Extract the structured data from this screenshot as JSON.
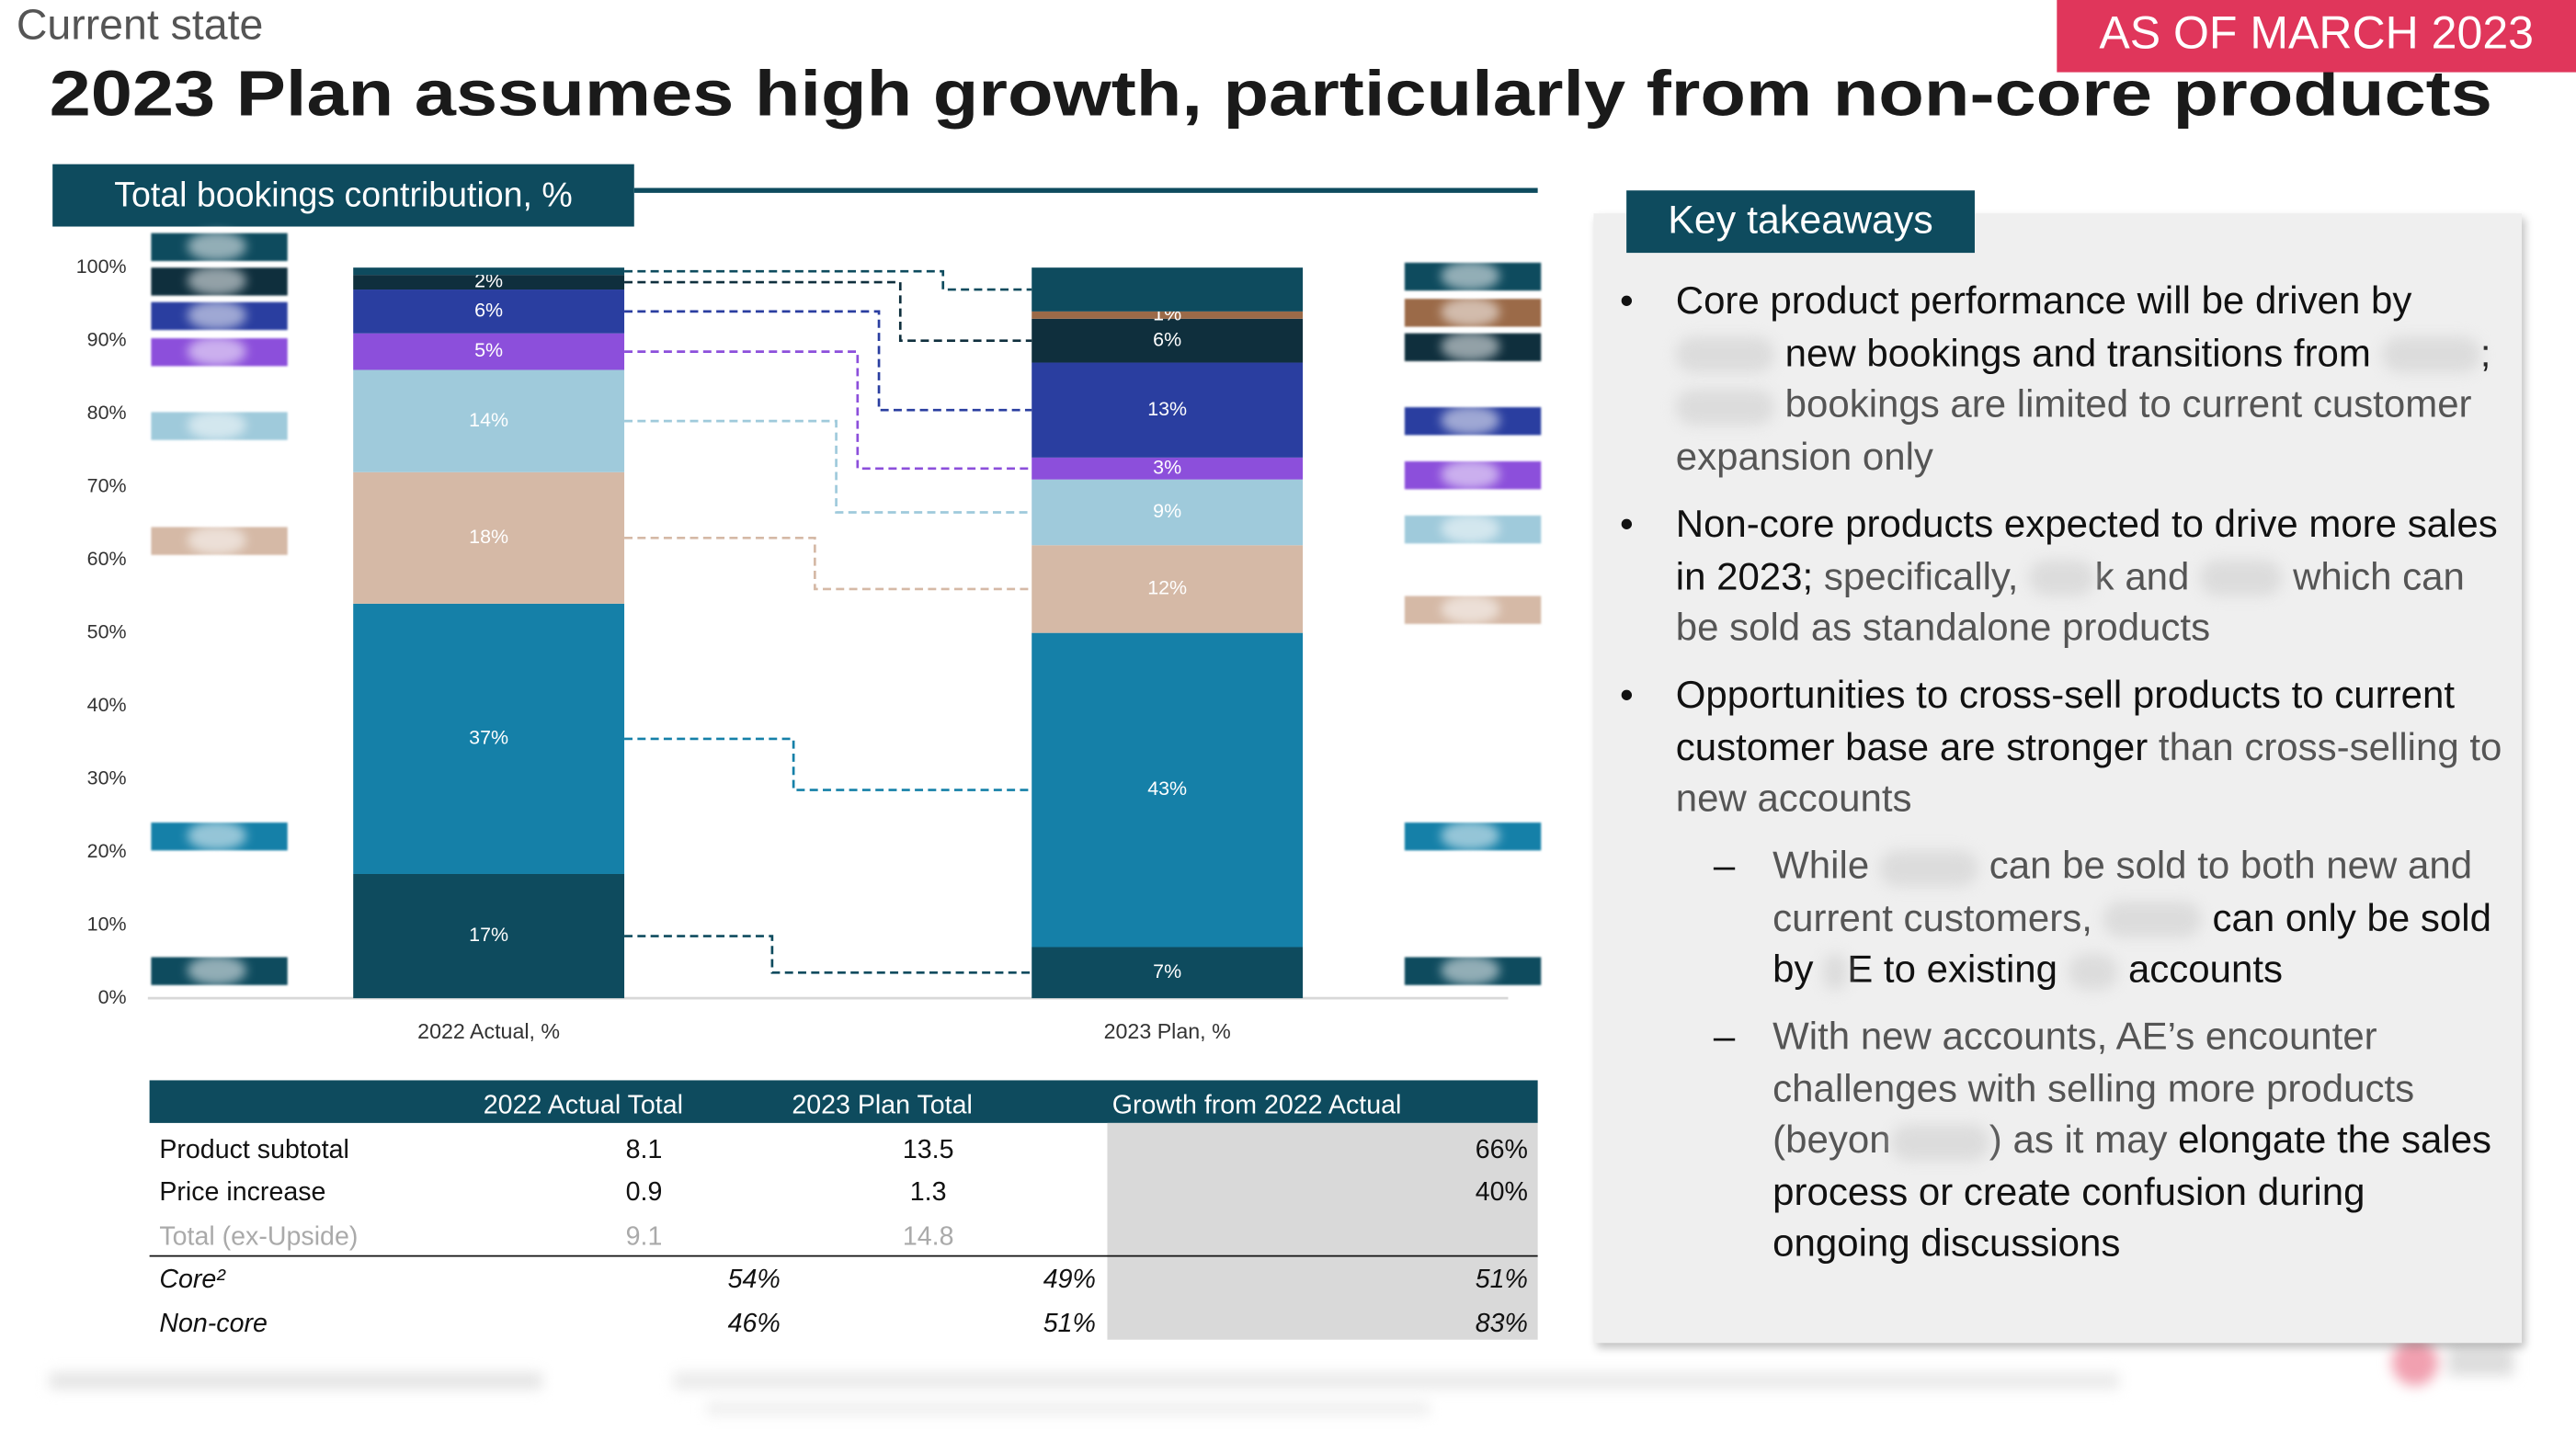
{
  "header": {
    "section": "Current state",
    "title": "2023 Plan assumes high growth, particularly from non-core products",
    "badge": "AS OF MARCH 2023"
  },
  "chart_data": {
    "type": "stacked-bar",
    "title": "Total bookings contribution, %",
    "categories": [
      "2022 Actual, %",
      "2023 Plan, %"
    ],
    "series": [
      {
        "color": "#0e4b5e",
        "values": [
          17,
          7
        ],
        "value_labels": [
          "17%",
          "7%"
        ]
      },
      {
        "color": "#1580a8",
        "values": [
          37,
          43
        ],
        "value_labels": [
          "37%",
          "43%"
        ]
      },
      {
        "color": "#d5b9a6",
        "values": [
          18,
          12
        ],
        "value_labels": [
          "18%",
          "12%"
        ]
      },
      {
        "color": "#9fcadb",
        "values": [
          14,
          9
        ],
        "value_labels": [
          "14%",
          "9%"
        ]
      },
      {
        "color": "#8c4fdb",
        "values": [
          5,
          3
        ],
        "value_labels": [
          "5%",
          "3%"
        ]
      },
      {
        "color": "#2a3ea0",
        "values": [
          6,
          13
        ],
        "value_labels": [
          "6%",
          "13%"
        ]
      },
      {
        "color": "#0f2f3d",
        "values": [
          2,
          6
        ],
        "value_labels": [
          "2%",
          "6%"
        ]
      },
      {
        "color": "#9b6a48",
        "values": [
          null,
          1
        ],
        "value_labels": [
          null,
          "1%"
        ]
      },
      {
        "color": "#0e4b5e",
        "values": [
          1,
          6
        ],
        "value_labels": [
          null,
          null
        ]
      }
    ],
    "ylim": [
      0,
      100
    ],
    "yticks": [
      {
        "value": 0,
        "label": "0%"
      },
      {
        "value": 10,
        "label": "10%"
      },
      {
        "value": 20,
        "label": "20%"
      },
      {
        "value": 30,
        "label": "30%"
      },
      {
        "value": 40,
        "label": "40%"
      },
      {
        "value": 50,
        "label": "50%"
      },
      {
        "value": 60,
        "label": "60%"
      },
      {
        "value": 70,
        "label": "70%"
      },
      {
        "value": 80,
        "label": "80%"
      },
      {
        "value": 90,
        "label": "90%"
      },
      {
        "value": 100,
        "label": "100%"
      }
    ]
  },
  "table": {
    "header": [
      "2022 Actual Total",
      "2023 Plan Total",
      "Growth from 2022 Actual"
    ],
    "rows": [
      [
        "Product subtotal",
        "8.1",
        "13.5",
        "66%"
      ],
      [
        "Price increase",
        "0.9",
        "1.3",
        "40%"
      ],
      [
        "Total (ex-Upside)",
        "9.1",
        "14.8"
      ],
      [
        "Core²",
        "54%",
        "49%",
        "51%"
      ],
      [
        "Non-core",
        "46%",
        "51%",
        "83%"
      ]
    ]
  },
  "takeaways": {
    "title": "Key takeaways",
    "bullets": [
      [
        "Core product performance will be driven by",
        "new bookings and transitions from",
        ";",
        "bookings are limited to current customer expansion only"
      ],
      [
        "Non-core products expected to drive more sales in 2023;",
        "specifically,",
        "k and",
        "which can be sold as standalone products"
      ],
      [
        "Opportunities to cross-sell products to current customer base are stronger",
        "than cross-selling to new accounts"
      ]
    ],
    "subbullets": [
      [
        "While",
        "can be sold to both new and current customers,",
        "can only be sold by",
        "E to existing",
        "accounts"
      ],
      [
        "With new accounts, AE’s encounter challenges with selling more products (beyon",
        ") as it may",
        "elongate the sales process or create confusion during ongoing discussions"
      ]
    ]
  }
}
